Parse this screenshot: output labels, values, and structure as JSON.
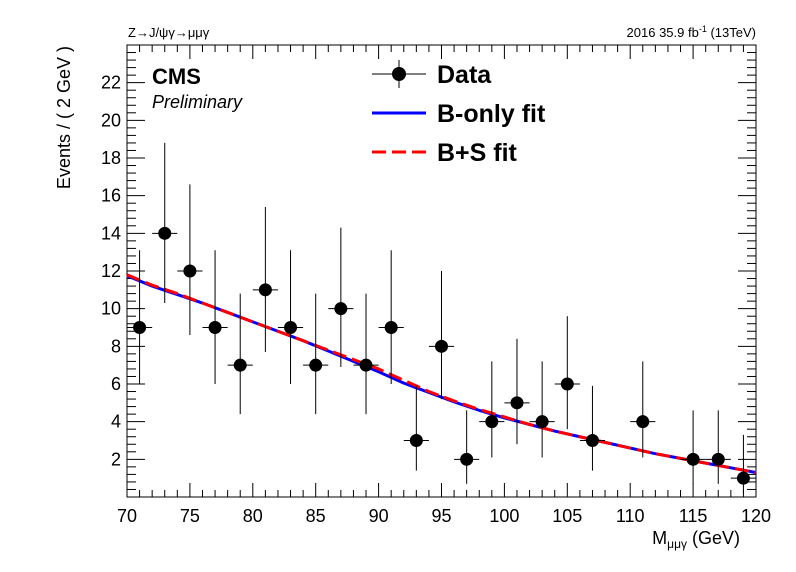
{
  "header": {
    "process": "Z→J/ψγ→μμγ",
    "lumi_prefix": "2016 35.9 fb",
    "lumi_exp": "-1",
    "lumi_suffix": " (13TeV)"
  },
  "branding": {
    "experiment": "CMS",
    "status": "Preliminary"
  },
  "legend": {
    "data": "Data",
    "bonly": "B-only fit",
    "bs": "B+S fit"
  },
  "colors": {
    "data": "#000000",
    "bonly": "#0000ff",
    "bs": "#ff0000"
  },
  "chart_data": {
    "type": "scatter",
    "title": "",
    "ylabel": "Events / ( 2 GeV )",
    "xlabel_main": "M",
    "xlabel_sub": "μμγ",
    "xlabel_unit": " (GeV)",
    "xlim": [
      70,
      120
    ],
    "ylim": [
      0,
      24
    ],
    "xticks": [
      70,
      75,
      80,
      85,
      90,
      95,
      100,
      105,
      110,
      115,
      120
    ],
    "yticks": [
      2,
      4,
      6,
      8,
      10,
      12,
      14,
      16,
      18,
      20,
      22
    ],
    "legend_position": "top-center",
    "series": [
      {
        "name": "Data",
        "kind": "points-with-errors",
        "x": [
          71,
          73,
          75,
          77,
          79,
          81,
          83,
          85,
          87,
          89,
          91,
          93,
          95,
          97,
          99,
          101,
          103,
          105,
          107,
          111,
          115,
          117,
          119
        ],
        "y": [
          9,
          14,
          12,
          9,
          7,
          11,
          9,
          7,
          10,
          7,
          9,
          3,
          8,
          2,
          4,
          5,
          4,
          6,
          3,
          4,
          2,
          2,
          1
        ],
        "err_low": [
          3.0,
          3.7,
          3.4,
          3.0,
          2.6,
          3.3,
          3.0,
          2.6,
          3.1,
          2.6,
          3.0,
          1.6,
          2.8,
          1.3,
          1.9,
          2.2,
          1.9,
          2.4,
          1.6,
          1.9,
          1.3,
          1.3,
          0.8
        ],
        "err_high": [
          4.1,
          4.8,
          4.6,
          4.1,
          3.8,
          4.4,
          4.1,
          3.8,
          4.3,
          3.8,
          4.1,
          2.9,
          4.0,
          2.6,
          3.2,
          3.4,
          3.2,
          3.6,
          2.9,
          3.2,
          2.6,
          2.6,
          2.3
        ]
      },
      {
        "name": "B-only fit",
        "kind": "line",
        "x": [
          70,
          72,
          74,
          76,
          78,
          80,
          82,
          84,
          86,
          88,
          90,
          92,
          94,
          96,
          98,
          100,
          102,
          104,
          106,
          108,
          110,
          112,
          114,
          116,
          118,
          120
        ],
        "y": [
          11.75,
          11.2,
          10.75,
          10.3,
          9.8,
          9.3,
          8.8,
          8.3,
          7.75,
          7.2,
          6.65,
          6.05,
          5.55,
          5.05,
          4.6,
          4.2,
          3.85,
          3.5,
          3.2,
          2.9,
          2.6,
          2.3,
          2.05,
          1.8,
          1.55,
          1.3
        ]
      },
      {
        "name": "B+S fit",
        "kind": "dashed-line",
        "x": [
          70,
          72,
          74,
          76,
          78,
          80,
          82,
          84,
          86,
          88,
          90,
          92,
          94,
          96,
          98,
          100,
          102,
          104,
          106,
          108,
          110,
          112,
          114,
          116,
          118,
          120
        ],
        "y": [
          11.8,
          11.25,
          10.8,
          10.3,
          9.8,
          9.3,
          8.8,
          8.3,
          7.8,
          7.3,
          6.8,
          6.2,
          5.6,
          5.1,
          4.65,
          4.25,
          3.85,
          3.5,
          3.2,
          2.9,
          2.6,
          2.3,
          2.05,
          1.8,
          1.55,
          1.3
        ]
      }
    ]
  }
}
